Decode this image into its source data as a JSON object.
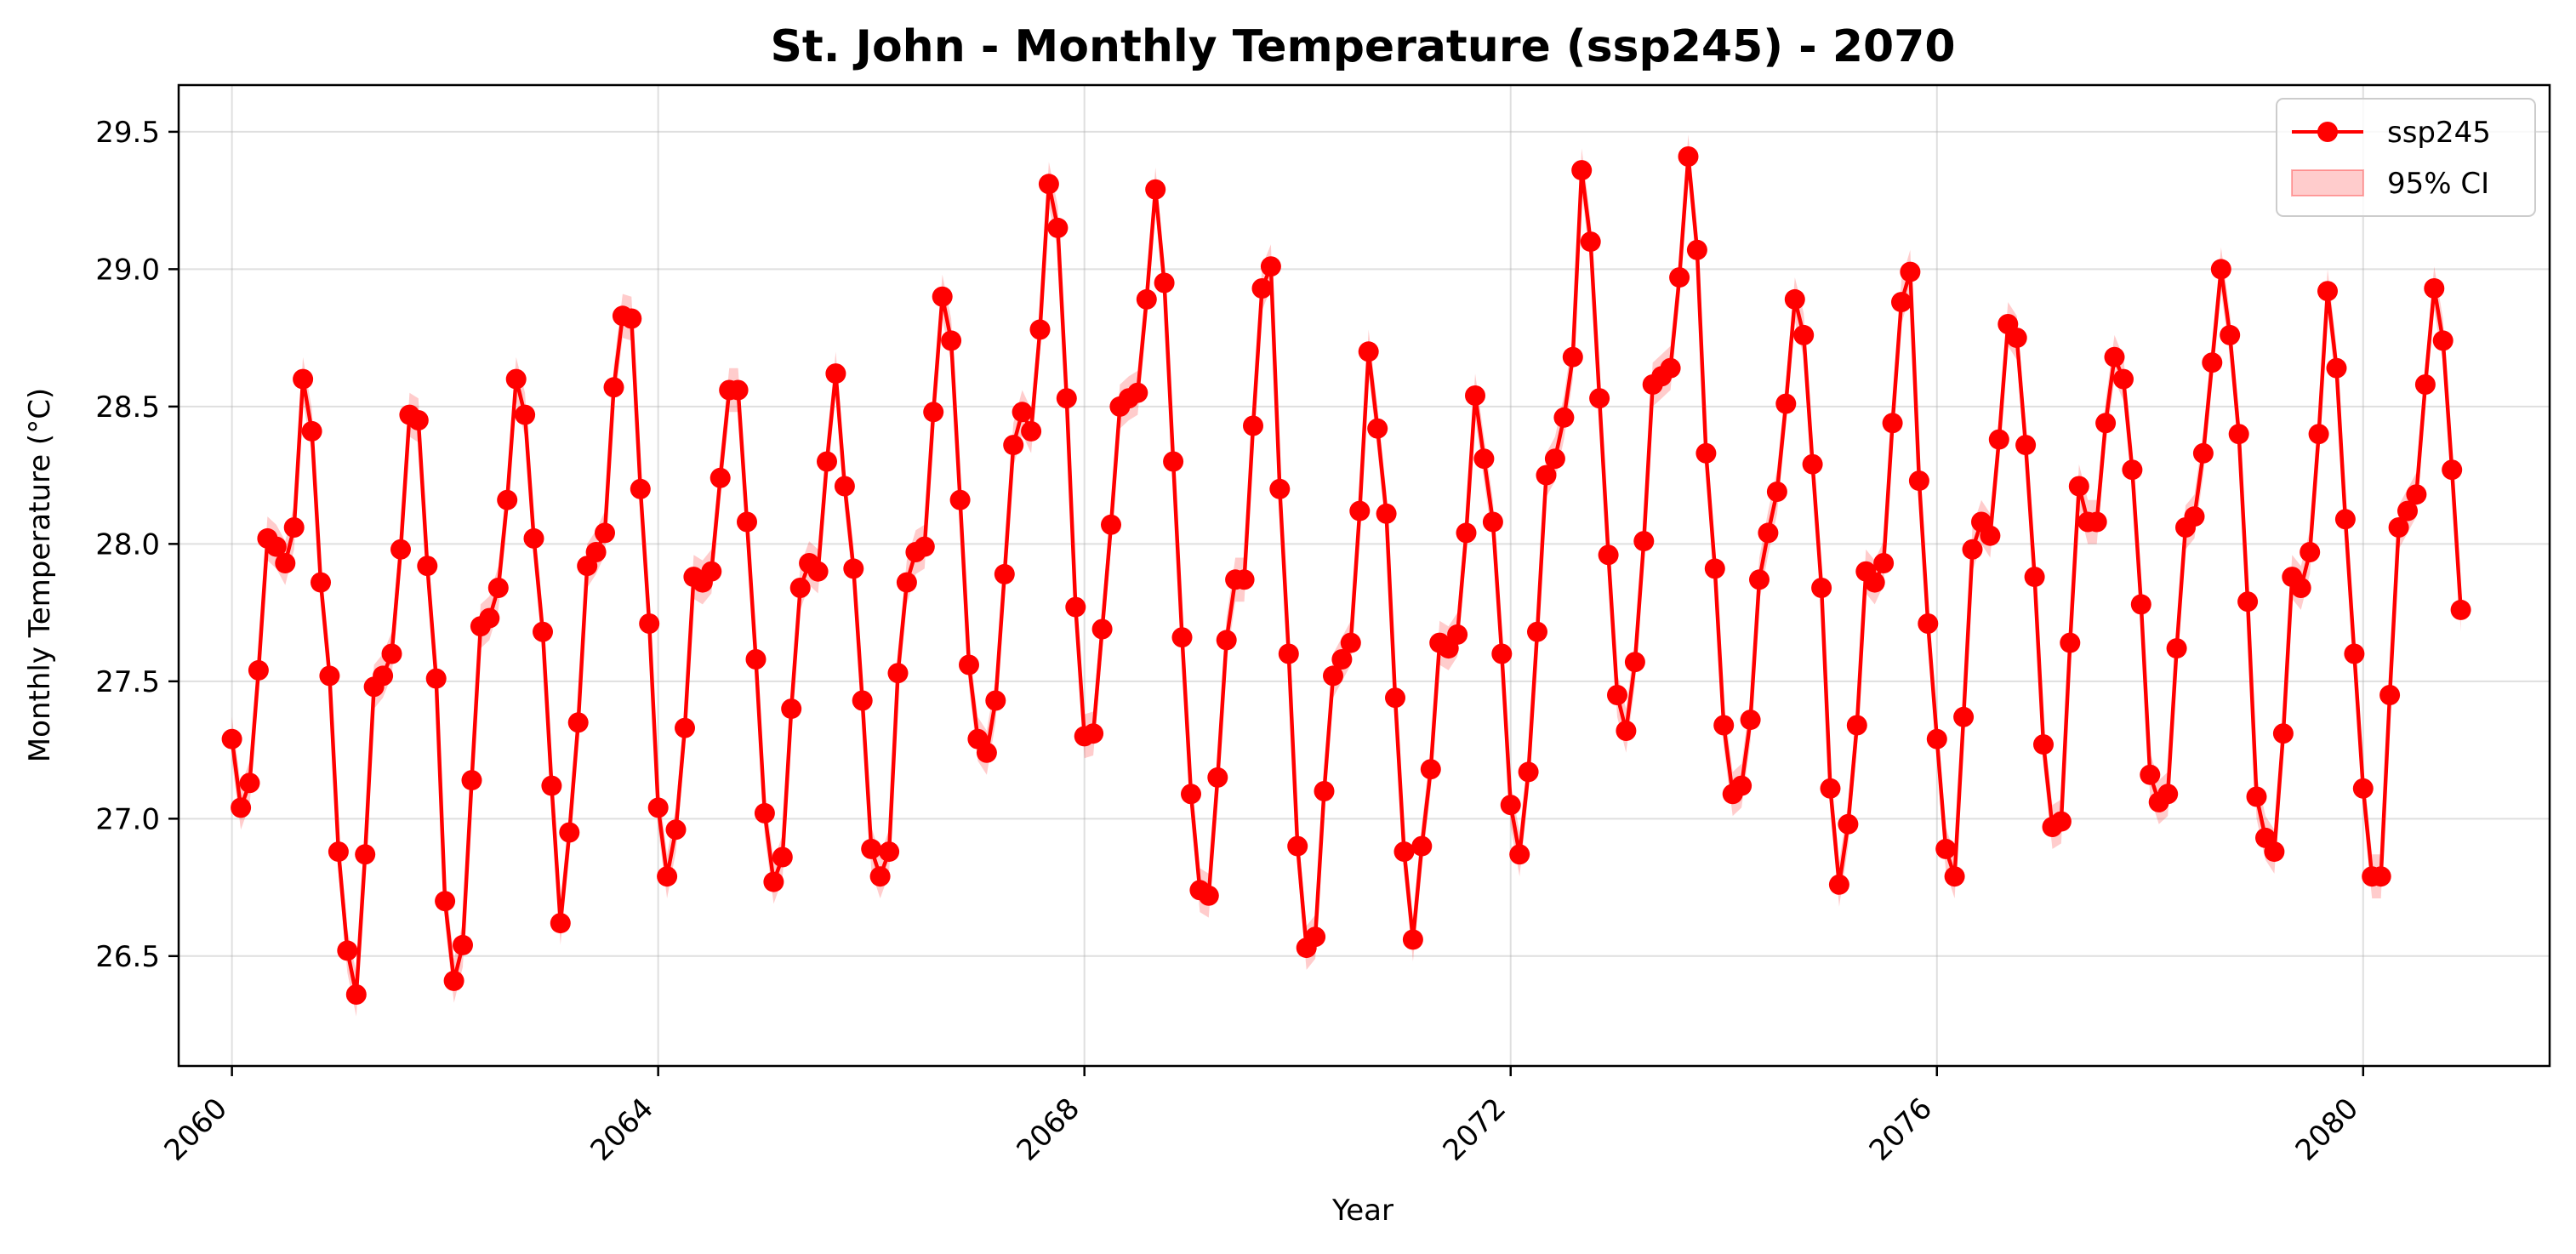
{
  "chart_data": {
    "type": "line",
    "title": "St. John - Monthly Temperature (ssp245) - 2070",
    "xlabel": "Year",
    "ylabel": "Monthly Temperature (°C)",
    "xlim": [
      2059.5,
      2081.75
    ],
    "ylim": [
      26.1,
      29.67
    ],
    "xticks": [
      2060,
      2064,
      2068,
      2072,
      2076,
      2080
    ],
    "xtick_labels": [
      "2060",
      "2064",
      "2068",
      "2072",
      "2076",
      "2080"
    ],
    "yticks": [
      26.5,
      27.0,
      27.5,
      28.0,
      28.5,
      29.0,
      29.5
    ],
    "ytick_labels": [
      "26.5",
      "27.0",
      "27.5",
      "28.0",
      "28.5",
      "29.0",
      "29.5"
    ],
    "grid": true,
    "legend_position": "top-right",
    "legend": [
      "ssp245",
      "95% CI"
    ],
    "colors": {
      "line": "#ff0000",
      "ci_fill": "#ff0000",
      "axes": "#000000",
      "grid": "#b0b0b0"
    },
    "x_start": "2060-01",
    "x_step_months": 1,
    "ci_halfwidth": 0.08,
    "series": [
      {
        "name": "ssp245",
        "values": [
          27.29,
          27.04,
          27.13,
          27.54,
          28.02,
          27.99,
          27.93,
          28.06,
          28.6,
          28.41,
          27.86,
          27.52,
          26.88,
          26.52,
          26.36,
          26.87,
          27.48,
          27.52,
          27.6,
          27.98,
          28.47,
          28.45,
          27.92,
          27.51,
          26.7,
          26.41,
          26.54,
          27.14,
          27.7,
          27.73,
          27.84,
          28.16,
          28.6,
          28.47,
          28.02,
          27.68,
          27.12,
          26.62,
          26.95,
          27.35,
          27.92,
          27.97,
          28.04,
          28.57,
          28.83,
          28.82,
          28.2,
          27.71,
          27.04,
          26.79,
          26.96,
          27.33,
          27.88,
          27.86,
          27.9,
          28.24,
          28.56,
          28.56,
          28.08,
          27.58,
          27.02,
          26.77,
          26.86,
          27.4,
          27.84,
          27.93,
          27.9,
          28.3,
          28.62,
          28.21,
          27.91,
          27.43,
          26.89,
          26.79,
          26.88,
          27.53,
          27.86,
          27.97,
          27.99,
          28.48,
          28.9,
          28.74,
          28.16,
          27.56,
          27.29,
          27.24,
          27.43,
          27.89,
          28.36,
          28.48,
          28.41,
          28.78,
          29.31,
          29.15,
          28.53,
          27.77,
          27.3,
          27.31,
          27.69,
          28.07,
          28.5,
          28.53,
          28.55,
          28.89,
          29.29,
          28.95,
          28.3,
          27.66,
          27.09,
          26.74,
          26.72,
          27.15,
          27.65,
          27.87,
          27.87,
          28.43,
          28.93,
          29.01,
          28.2,
          27.6,
          26.9,
          26.53,
          26.57,
          27.1,
          27.52,
          27.58,
          27.64,
          28.12,
          28.7,
          28.42,
          28.11,
          27.44,
          26.88,
          26.56,
          26.9,
          27.18,
          27.64,
          27.62,
          27.67,
          28.04,
          28.54,
          28.31,
          28.08,
          27.6,
          27.05,
          26.87,
          27.17,
          27.68,
          28.25,
          28.31,
          28.46,
          28.68,
          29.36,
          29.1,
          28.53,
          27.96,
          27.45,
          27.32,
          27.57,
          28.01,
          28.58,
          28.61,
          28.64,
          28.97,
          29.41,
          29.07,
          28.33,
          27.91,
          27.34,
          27.09,
          27.12,
          27.36,
          27.87,
          28.04,
          28.19,
          28.51,
          28.89,
          28.76,
          28.29,
          27.84,
          27.11,
          26.76,
          26.98,
          27.34,
          27.9,
          27.86,
          27.93,
          28.44,
          28.88,
          28.99,
          28.23,
          27.71,
          27.29,
          26.89,
          26.79,
          27.37,
          27.98,
          28.08,
          28.03,
          28.38,
          28.8,
          28.75,
          28.36,
          27.88,
          27.27,
          26.97,
          26.99,
          27.64,
          28.21,
          28.08,
          28.08,
          28.44,
          28.68,
          28.6,
          28.27,
          27.78,
          27.16,
          27.06,
          27.09,
          27.62,
          28.06,
          28.1,
          28.33,
          28.66,
          29.0,
          28.76,
          28.4,
          27.79,
          27.08,
          26.93,
          26.88,
          27.31,
          27.88,
          27.84,
          27.97,
          28.4,
          28.92,
          28.64,
          28.09,
          27.6,
          27.11,
          26.79,
          26.79,
          27.45,
          28.06,
          28.12,
          28.18,
          28.58,
          28.93,
          28.74,
          28.27,
          27.76
        ]
      }
    ]
  }
}
